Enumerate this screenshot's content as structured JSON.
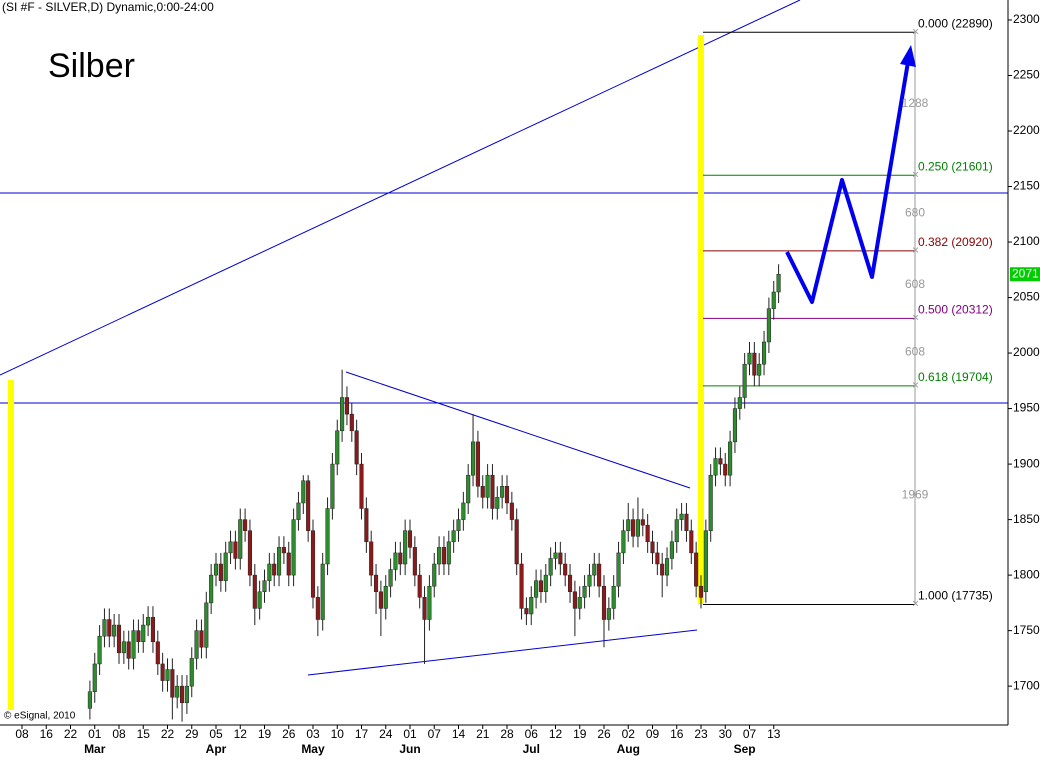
{
  "chart_data": {
    "type": "candlestick",
    "title": "(SI #F - SILVER,D) Dynamic,0:00-24:00",
    "annotation": "Silber",
    "credit": "© eSignal, 2010",
    "last_price": 2071,
    "up_color": "#2e8b2e",
    "down_color": "#8b1a1a",
    "xlim": [
      -4.536,
      203.3
    ],
    "ylim": [
      1665,
      2318
    ],
    "yticks": [
      1700,
      1750,
      1800,
      1850,
      1900,
      1950,
      2000,
      2050,
      2100,
      2150,
      2200,
      2250,
      2300
    ],
    "xticks": [
      {
        "value": 0,
        "label": "08"
      },
      {
        "value": 5,
        "label": "16"
      },
      {
        "value": 10,
        "label": "22"
      },
      {
        "value": 15,
        "label": "01"
      },
      {
        "value": 20,
        "label": "08"
      },
      {
        "value": 25,
        "label": "15"
      },
      {
        "value": 30,
        "label": "22"
      },
      {
        "value": 35,
        "label": "29"
      },
      {
        "value": 40,
        "label": "05"
      },
      {
        "value": 45,
        "label": "12"
      },
      {
        "value": 50,
        "label": "19"
      },
      {
        "value": 55,
        "label": "26"
      },
      {
        "value": 60,
        "label": "03"
      },
      {
        "value": 65,
        "label": "10"
      },
      {
        "value": 70,
        "label": "17"
      },
      {
        "value": 75,
        "label": "24"
      },
      {
        "value": 80,
        "label": "01"
      },
      {
        "value": 85,
        "label": "07"
      },
      {
        "value": 90,
        "label": "14"
      },
      {
        "value": 95,
        "label": "21"
      },
      {
        "value": 100,
        "label": "28"
      },
      {
        "value": 105,
        "label": "06"
      },
      {
        "value": 110,
        "label": "12"
      },
      {
        "value": 115,
        "label": "19"
      },
      {
        "value": 120,
        "label": "26"
      },
      {
        "value": 125,
        "label": "02"
      },
      {
        "value": 130,
        "label": "09"
      },
      {
        "value": 135,
        "label": "16"
      },
      {
        "value": 140,
        "label": "23"
      },
      {
        "value": 145,
        "label": "30"
      },
      {
        "value": 150,
        "label": "07"
      },
      {
        "value": 155,
        "label": "13"
      }
    ],
    "months": [
      {
        "value": 15,
        "label": "Mar"
      },
      {
        "value": 40,
        "label": "Apr"
      },
      {
        "value": 60,
        "label": "May"
      },
      {
        "value": 80,
        "label": "Jun"
      },
      {
        "value": 105,
        "label": "Jul"
      },
      {
        "value": 125,
        "label": "Aug"
      },
      {
        "value": 149,
        "label": "Sep"
      }
    ],
    "fib_levels": [
      {
        "label": "0.000 (22890)",
        "value": 2289,
        "color": "#000000"
      },
      {
        "label": "0.250 (21601)",
        "value": 2160.1,
        "color": "#008000"
      },
      {
        "label": "0.382 (20920)",
        "value": 2092,
        "color": "#8b0000"
      },
      {
        "label": "0.500 (20312)",
        "value": 2031.2,
        "color": "#800080"
      },
      {
        "label": "0.618 (19704)",
        "value": 1970.4,
        "color": "#008000"
      },
      {
        "label": "1.000 (17735)",
        "value": 1773.5,
        "color": "#000000"
      }
    ],
    "fib_distances": [
      1288,
      680,
      608,
      608,
      1969
    ],
    "x": [
      14,
      15,
      16,
      17,
      18,
      19,
      20,
      21,
      22,
      23,
      24,
      25,
      26,
      27,
      28,
      29,
      30,
      31,
      32,
      33,
      34,
      35,
      36,
      37,
      38,
      39,
      40,
      41,
      42,
      43,
      44,
      45,
      46,
      47,
      48,
      49,
      50,
      51,
      52,
      53,
      54,
      55,
      56,
      57,
      58,
      59,
      60,
      61,
      62,
      63,
      64,
      65,
      66,
      67,
      68,
      69,
      70,
      71,
      72,
      73,
      74,
      75,
      76,
      77,
      78,
      79,
      80,
      81,
      82,
      83,
      84,
      85,
      86,
      87,
      88,
      89,
      90,
      91,
      92,
      93,
      94,
      95,
      96,
      97,
      98,
      99,
      100,
      101,
      102,
      103,
      104,
      105,
      106,
      107,
      108,
      109,
      110,
      111,
      112,
      113,
      114,
      115,
      116,
      117,
      118,
      119,
      120,
      121,
      122,
      123,
      124,
      125,
      126,
      127,
      128,
      129,
      130,
      131,
      132,
      133,
      134,
      135,
      136,
      137,
      138,
      139,
      140,
      141,
      142,
      143,
      144,
      145,
      146,
      147,
      148,
      149,
      150,
      151,
      152,
      153,
      154,
      155,
      156
    ],
    "ohlc": [
      [
        1680,
        1705,
        1670,
        1695
      ],
      [
        1695,
        1730,
        1685,
        1720
      ],
      [
        1720,
        1755,
        1710,
        1745
      ],
      [
        1745,
        1770,
        1735,
        1760
      ],
      [
        1760,
        1770,
        1735,
        1745
      ],
      [
        1745,
        1765,
        1735,
        1755
      ],
      [
        1755,
        1765,
        1720,
        1730
      ],
      [
        1730,
        1750,
        1720,
        1740
      ],
      [
        1740,
        1750,
        1715,
        1725
      ],
      [
        1725,
        1760,
        1715,
        1750
      ],
      [
        1750,
        1760,
        1730,
        1740
      ],
      [
        1740,
        1765,
        1730,
        1755
      ],
      [
        1755,
        1772,
        1745,
        1762
      ],
      [
        1762,
        1772,
        1730,
        1740
      ],
      [
        1740,
        1750,
        1710,
        1720
      ],
      [
        1720,
        1730,
        1695,
        1705
      ],
      [
        1705,
        1725,
        1695,
        1715
      ],
      [
        1715,
        1725,
        1670,
        1690
      ],
      [
        1690,
        1710,
        1680,
        1700
      ],
      [
        1700,
        1710,
        1668,
        1685
      ],
      [
        1685,
        1710,
        1675,
        1700
      ],
      [
        1700,
        1735,
        1690,
        1725
      ],
      [
        1725,
        1760,
        1715,
        1750
      ],
      [
        1750,
        1760,
        1725,
        1735
      ],
      [
        1735,
        1785,
        1725,
        1775
      ],
      [
        1775,
        1810,
        1765,
        1800
      ],
      [
        1800,
        1820,
        1790,
        1810
      ],
      [
        1810,
        1820,
        1785,
        1795
      ],
      [
        1795,
        1830,
        1785,
        1820
      ],
      [
        1820,
        1840,
        1810,
        1830
      ],
      [
        1830,
        1840,
        1805,
        1815
      ],
      [
        1815,
        1860,
        1805,
        1850
      ],
      [
        1850,
        1860,
        1830,
        1840
      ],
      [
        1840,
        1850,
        1790,
        1800
      ],
      [
        1800,
        1810,
        1755,
        1770
      ],
      [
        1770,
        1795,
        1760,
        1785
      ],
      [
        1785,
        1805,
        1775,
        1795
      ],
      [
        1795,
        1820,
        1785,
        1810
      ],
      [
        1810,
        1820,
        1790,
        1800
      ],
      [
        1800,
        1835,
        1790,
        1825
      ],
      [
        1825,
        1835,
        1810,
        1820
      ],
      [
        1820,
        1830,
        1790,
        1800
      ],
      [
        1800,
        1860,
        1790,
        1850
      ],
      [
        1850,
        1875,
        1840,
        1865
      ],
      [
        1865,
        1890,
        1855,
        1885
      ],
      [
        1885,
        1890,
        1830,
        1840
      ],
      [
        1840,
        1850,
        1770,
        1780
      ],
      [
        1780,
        1790,
        1745,
        1760
      ],
      [
        1760,
        1820,
        1750,
        1810
      ],
      [
        1810,
        1870,
        1800,
        1860
      ],
      [
        1860,
        1910,
        1850,
        1900
      ],
      [
        1900,
        1940,
        1890,
        1930
      ],
      [
        1930,
        1985,
        1920,
        1960
      ],
      [
        1960,
        1970,
        1935,
        1945
      ],
      [
        1945,
        1955,
        1920,
        1930
      ],
      [
        1930,
        1940,
        1890,
        1900
      ],
      [
        1900,
        1910,
        1850,
        1860
      ],
      [
        1860,
        1870,
        1820,
        1830
      ],
      [
        1830,
        1840,
        1790,
        1800
      ],
      [
        1800,
        1810,
        1765,
        1785
      ],
      [
        1785,
        1795,
        1745,
        1770
      ],
      [
        1770,
        1800,
        1760,
        1790
      ],
      [
        1790,
        1815,
        1780,
        1805
      ],
      [
        1805,
        1830,
        1795,
        1820
      ],
      [
        1820,
        1830,
        1800,
        1810
      ],
      [
        1810,
        1850,
        1800,
        1840
      ],
      [
        1840,
        1850,
        1815,
        1825
      ],
      [
        1825,
        1835,
        1790,
        1800
      ],
      [
        1800,
        1810,
        1770,
        1780
      ],
      [
        1780,
        1790,
        1720,
        1760
      ],
      [
        1760,
        1800,
        1750,
        1790
      ],
      [
        1790,
        1820,
        1780,
        1810
      ],
      [
        1810,
        1835,
        1800,
        1825
      ],
      [
        1825,
        1835,
        1800,
        1810
      ],
      [
        1810,
        1840,
        1800,
        1830
      ],
      [
        1830,
        1850,
        1820,
        1840
      ],
      [
        1840,
        1860,
        1830,
        1850
      ],
      [
        1850,
        1875,
        1840,
        1865
      ],
      [
        1865,
        1900,
        1855,
        1890
      ],
      [
        1890,
        1945,
        1880,
        1920
      ],
      [
        1920,
        1930,
        1870,
        1880
      ],
      [
        1880,
        1890,
        1860,
        1870
      ],
      [
        1870,
        1900,
        1860,
        1890
      ],
      [
        1890,
        1900,
        1850,
        1860
      ],
      [
        1860,
        1880,
        1850,
        1870
      ],
      [
        1870,
        1890,
        1860,
        1880
      ],
      [
        1880,
        1890,
        1855,
        1865
      ],
      [
        1865,
        1875,
        1840,
        1850
      ],
      [
        1850,
        1860,
        1800,
        1810
      ],
      [
        1810,
        1820,
        1760,
        1770
      ],
      [
        1770,
        1780,
        1755,
        1765
      ],
      [
        1765,
        1790,
        1755,
        1780
      ],
      [
        1780,
        1805,
        1770,
        1795
      ],
      [
        1795,
        1805,
        1775,
        1785
      ],
      [
        1785,
        1810,
        1775,
        1800
      ],
      [
        1800,
        1825,
        1790,
        1815
      ],
      [
        1815,
        1830,
        1805,
        1820
      ],
      [
        1820,
        1830,
        1800,
        1810
      ],
      [
        1810,
        1820,
        1790,
        1800
      ],
      [
        1800,
        1810,
        1775,
        1785
      ],
      [
        1785,
        1795,
        1745,
        1770
      ],
      [
        1770,
        1790,
        1760,
        1780
      ],
      [
        1780,
        1800,
        1770,
        1790
      ],
      [
        1790,
        1810,
        1780,
        1800
      ],
      [
        1800,
        1820,
        1790,
        1810
      ],
      [
        1810,
        1820,
        1780,
        1790
      ],
      [
        1790,
        1800,
        1735,
        1760
      ],
      [
        1760,
        1780,
        1750,
        1770
      ],
      [
        1770,
        1800,
        1760,
        1790
      ],
      [
        1790,
        1830,
        1780,
        1820
      ],
      [
        1820,
        1850,
        1810,
        1840
      ],
      [
        1840,
        1865,
        1830,
        1850
      ],
      [
        1850,
        1860,
        1825,
        1835
      ],
      [
        1835,
        1870,
        1825,
        1850
      ],
      [
        1850,
        1860,
        1835,
        1845
      ],
      [
        1845,
        1855,
        1820,
        1830
      ],
      [
        1830,
        1840,
        1810,
        1820
      ],
      [
        1820,
        1830,
        1800,
        1810
      ],
      [
        1810,
        1820,
        1780,
        1800
      ],
      [
        1800,
        1825,
        1790,
        1815
      ],
      [
        1815,
        1840,
        1805,
        1830
      ],
      [
        1830,
        1860,
        1820,
        1850
      ],
      [
        1850,
        1865,
        1840,
        1855
      ],
      [
        1855,
        1865,
        1830,
        1840
      ],
      [
        1840,
        1850,
        1810,
        1820
      ],
      [
        1820,
        1830,
        1780,
        1790
      ],
      [
        1790,
        1800,
        1770,
        1780
      ],
      [
        1785,
        1850,
        1775,
        1840
      ],
      [
        1840,
        1900,
        1830,
        1890
      ],
      [
        1890,
        1915,
        1880,
        1905
      ],
      [
        1905,
        1915,
        1890,
        1900
      ],
      [
        1900,
        1910,
        1880,
        1890
      ],
      [
        1890,
        1930,
        1880,
        1920
      ],
      [
        1920,
        1960,
        1910,
        1950
      ],
      [
        1950,
        1970,
        1940,
        1960
      ],
      [
        1960,
        2000,
        1950,
        1990
      ],
      [
        1990,
        2010,
        1980,
        2000
      ],
      [
        2000,
        2010,
        1970,
        1980
      ],
      [
        1980,
        2000,
        1970,
        1990
      ],
      [
        1990,
        2020,
        1980,
        2010
      ],
      [
        2010,
        2050,
        2000,
        2040
      ],
      [
        2040,
        2065,
        2030,
        2055
      ],
      [
        2055,
        2080,
        2045,
        2071
      ]
    ]
  }
}
